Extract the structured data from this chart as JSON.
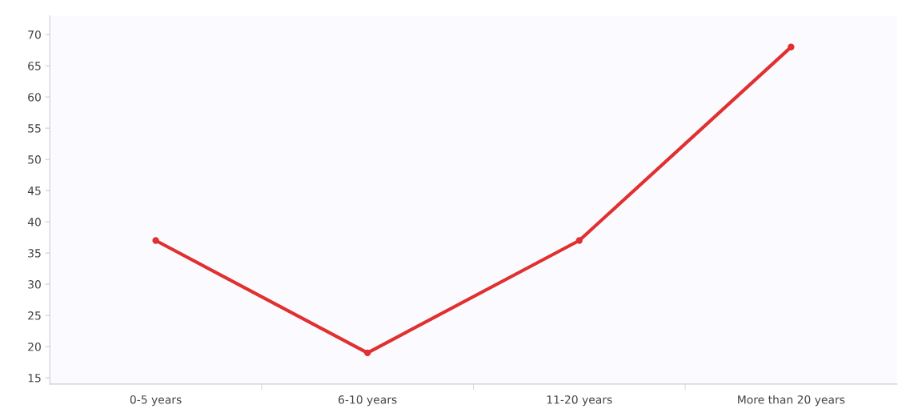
{
  "chart_data": {
    "type": "line",
    "categories": [
      "0-5 years",
      "6-10 years",
      "11-20 years",
      "More than 20 years"
    ],
    "series": [
      {
        "color": "#e0302f",
        "values": [
          37,
          19,
          37,
          68
        ]
      }
    ],
    "ylim": [
      14,
      73
    ],
    "yticks": [
      15,
      20,
      25,
      30,
      35,
      40,
      45,
      50,
      55,
      60,
      65,
      70
    ],
    "grid": false,
    "marker": "circle",
    "line_style": "solid"
  }
}
